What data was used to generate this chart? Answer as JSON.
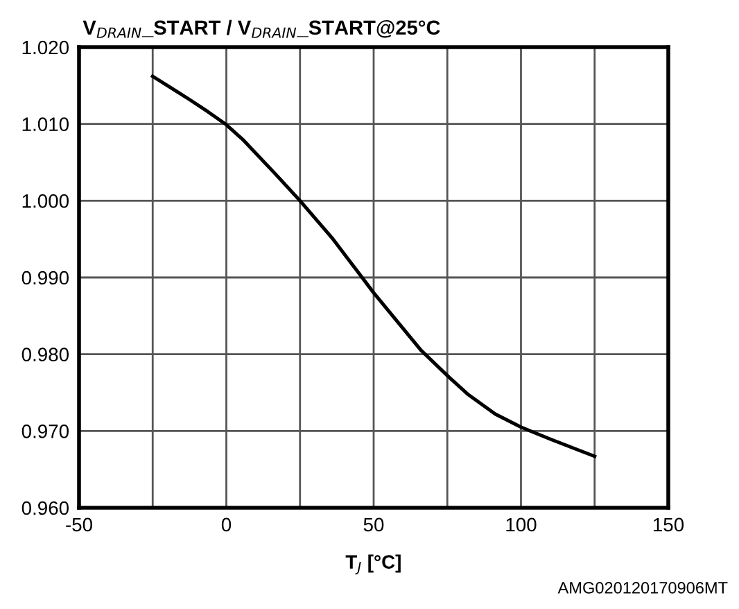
{
  "chart_data": {
    "type": "line",
    "ylabel": "V$_{DRAIN}$_START / V$_{DRAIN}$_START@25°C",
    "xlabel": "T$_{J}$ [°C]",
    "annotations": [
      "AMG020120170906MT"
    ],
    "x": [
      -25,
      -12.6,
      -6.3,
      0,
      5.5,
      16.6,
      25,
      36.2,
      50,
      66.1,
      75.6,
      81.9,
      91.3,
      100,
      110.2,
      119.6,
      125
    ],
    "series": [
      {
        "color": "#000000",
        "values": [
          1.0162,
          1.0132,
          1.0116,
          1.0099,
          1.008,
          1.0035,
          1.0,
          0.995,
          0.988,
          0.9805,
          0.977,
          0.9748,
          0.9722,
          0.9705,
          0.9689,
          0.9675,
          0.9667
        ]
      }
    ],
    "xlim": [
      -50,
      150
    ],
    "xticks": [
      -50,
      {
        "value": -25,
        "label": null
      },
      0,
      {
        "value": 25,
        "label": null
      },
      50,
      {
        "value": 75,
        "label": null
      },
      100,
      {
        "value": 125,
        "label": null
      },
      150
    ],
    "ylim": [
      0.96,
      1.02
    ],
    "yticks": [
      {
        "value": 0.96,
        "label": "0.960"
      },
      {
        "value": 0.97,
        "label": "0.970"
      },
      {
        "value": 0.98,
        "label": "0.980"
      },
      {
        "value": 0.99,
        "label": "0.990"
      },
      {
        "value": 1.0,
        "label": "1.000"
      },
      {
        "value": 1.01,
        "label": "1.010"
      },
      {
        "value": 1.02,
        "label": "1.020"
      }
    ],
    "grid": true,
    "legend": false
  }
}
